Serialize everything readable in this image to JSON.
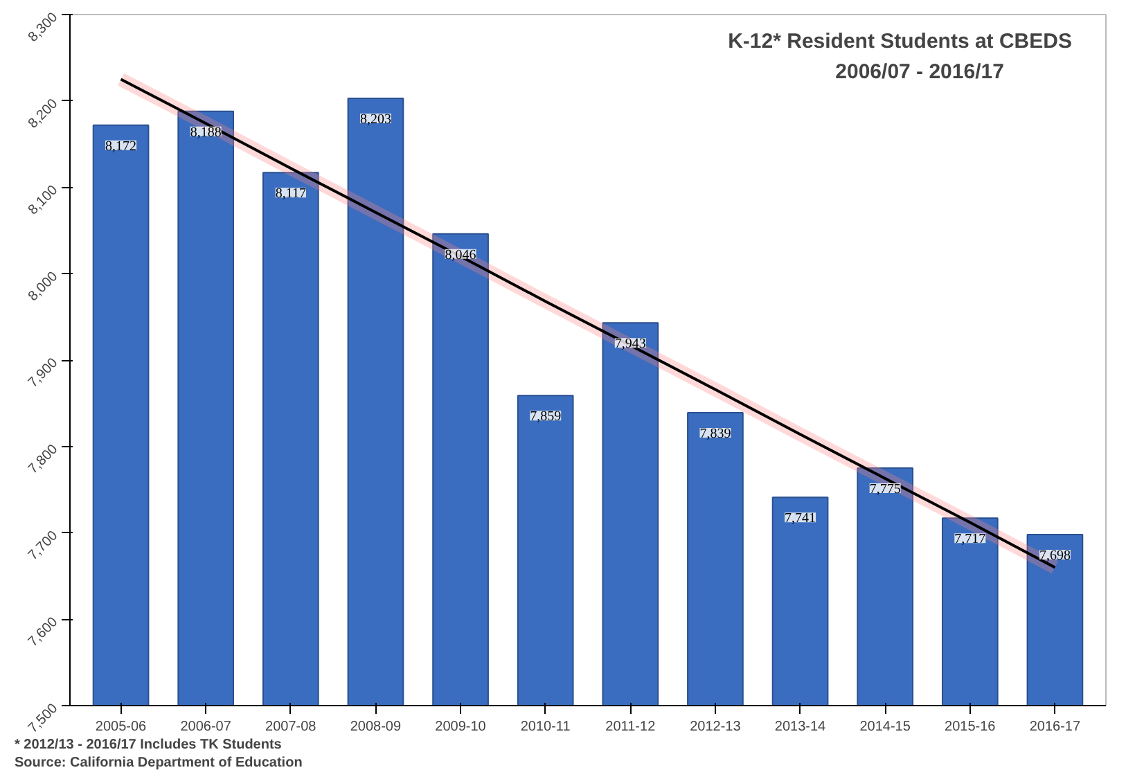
{
  "chart_data": {
    "type": "bar",
    "title": "K-12* Resident Students at CBEDS",
    "subtitle": "2006/07 - 2016/17",
    "categories": [
      "2005-06",
      "2006-07",
      "2007-08",
      "2008-09",
      "2009-10",
      "2010-11",
      "2011-12",
      "2012-13",
      "2013-14",
      "2014-15",
      "2015-16",
      "2016-17"
    ],
    "series": [
      {
        "color": "#3a6dbf",
        "values": [
          8172,
          8188,
          8117,
          8203,
          8046,
          7859,
          7943,
          7839,
          7741,
          7775,
          7717,
          7698
        ],
        "value_labels": [
          "8,172",
          "8,188",
          "8,117",
          "8,203",
          "8,046",
          "7,859",
          "7,943",
          "7,839",
          "7,741",
          "7,775",
          "7,717",
          "7,698"
        ]
      },
      {
        "type": "line",
        "color": "#000000",
        "values": [
          8225,
          8174,
          8122,
          8071,
          8020,
          7968,
          7917,
          7866,
          7814,
          7763,
          7712,
          7660
        ]
      }
    ],
    "ylim": [
      7500,
      8300
    ],
    "yticks": [
      {
        "value": 7500,
        "label": "7,500"
      },
      {
        "value": 7600,
        "label": "7,600"
      },
      {
        "value": 7700,
        "label": "7,700"
      },
      {
        "value": 7800,
        "label": "7,800"
      },
      {
        "value": 7900,
        "label": "7,900"
      },
      {
        "value": 8000,
        "label": "8,000"
      },
      {
        "value": 8100,
        "label": "8,100"
      },
      {
        "value": 8200,
        "label": "8,200"
      },
      {
        "value": 8300,
        "label": "8,300"
      }
    ],
    "grid": false,
    "annotations": [
      "* 2012/13 - 2016/17 Includes TK Students",
      "Source: California Department of Education"
    ]
  }
}
